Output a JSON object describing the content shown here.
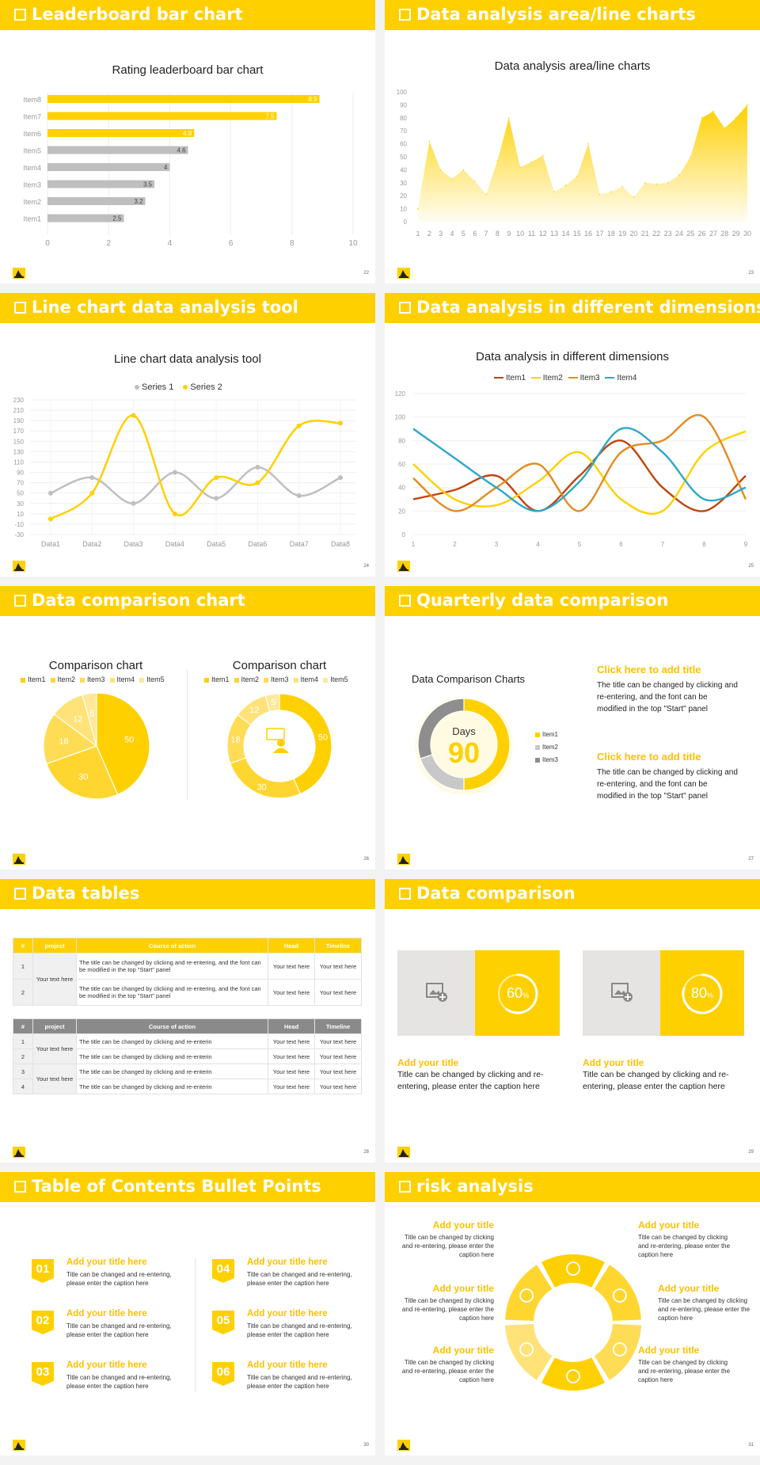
{
  "colors": {
    "accent": "#ffd000",
    "gray": "#bfbfbf",
    "dark_gray": "#8a8a8a",
    "orange": "#e58a1f",
    "blue": "#2ea7c9",
    "brown": "#c0440c"
  },
  "slides": [
    {
      "title": "Leaderboard bar chart",
      "page": "22"
    },
    {
      "title": "Data analysis area/line charts",
      "page": "23"
    },
    {
      "title": "Line chart data analysis tool",
      "page": "24"
    },
    {
      "title": "Data analysis in different dimensions",
      "page": "25"
    },
    {
      "title": "Data comparison chart",
      "page": "26"
    },
    {
      "title": "Quarterly data comparison",
      "page": "27"
    },
    {
      "title": "Data tables",
      "page": "28"
    },
    {
      "title": "Data comparison",
      "page": "29"
    },
    {
      "title": "Table of Contents Bullet Points",
      "page": "30"
    },
    {
      "title": "risk analysis",
      "page": "31"
    }
  ],
  "chart_data": [
    {
      "type": "bar",
      "orientation": "horizontal",
      "title": "Rating leaderboard bar chart",
      "categories": [
        "Item8",
        "Item7",
        "Item6",
        "Item5",
        "Item4",
        "Item3",
        "Item2",
        "Item1"
      ],
      "values": [
        8.9,
        7.5,
        4.8,
        4.6,
        4,
        3.5,
        3.2,
        2.5
      ],
      "highlight": [
        "Item8",
        "Item7",
        "Item6"
      ],
      "xlim": [
        0,
        10
      ],
      "xticks": [
        "0",
        "2",
        "4",
        "6",
        "8",
        "10"
      ]
    },
    {
      "type": "area",
      "title": "Data analysis area/line charts",
      "x": [
        1,
        2,
        3,
        4,
        5,
        6,
        7,
        8,
        9,
        10,
        11,
        12,
        13,
        14,
        15,
        16,
        17,
        18,
        19,
        20,
        21,
        22,
        23,
        24,
        25,
        26,
        27,
        28,
        29,
        30
      ],
      "values": [
        10,
        62,
        40,
        33,
        40,
        31,
        21,
        47,
        80,
        42,
        46,
        51,
        23,
        28,
        35,
        60,
        21,
        23,
        27,
        19,
        30,
        29,
        30,
        36,
        50,
        80,
        85,
        72,
        80,
        90
      ],
      "ylim": [
        0,
        100
      ],
      "yticks": [
        "0",
        "10",
        "20",
        "30",
        "40",
        "50",
        "60",
        "70",
        "80",
        "90",
        "100"
      ]
    },
    {
      "type": "line",
      "title": "Line chart data analysis tool",
      "categories": [
        "Data1",
        "Data2",
        "Data3",
        "Data4",
        "Data5",
        "Data6",
        "Data7",
        "Data8"
      ],
      "series": [
        {
          "name": "Series 1",
          "values": [
            50,
            80,
            30,
            90,
            40,
            100,
            45,
            80
          ]
        },
        {
          "name": "Series 2",
          "values": [
            0,
            50,
            200,
            10,
            80,
            70,
            180,
            185
          ]
        }
      ],
      "ylim": [
        -30,
        230
      ],
      "yticks": [
        "230",
        "210",
        "190",
        "170",
        "150",
        "130",
        "110",
        "90",
        "70",
        "50",
        "30",
        "10",
        "-10",
        "-30"
      ]
    },
    {
      "type": "line",
      "title": "Data analysis in different dimensions",
      "x": [
        1,
        2,
        3,
        4,
        5,
        6,
        7,
        8,
        9
      ],
      "series": [
        {
          "name": "Item1",
          "values": [
            30,
            38,
            50,
            20,
            50,
            80,
            40,
            20,
            50
          ]
        },
        {
          "name": "Item2",
          "values": [
            60,
            30,
            25,
            45,
            70,
            30,
            20,
            70,
            88
          ]
        },
        {
          "name": "Item3",
          "values": [
            48,
            20,
            40,
            60,
            20,
            70,
            80,
            100,
            30
          ]
        },
        {
          "name": "Item4",
          "values": [
            90,
            65,
            40,
            20,
            45,
            90,
            70,
            30,
            40
          ]
        }
      ],
      "ylim": [
        0,
        120
      ],
      "yticks": [
        "0",
        "20",
        "40",
        "60",
        "80",
        "100",
        "120"
      ]
    },
    {
      "type": "pie",
      "title": "Comparison chart",
      "labels": [
        "Item1",
        "Item2",
        "Item3",
        "Item4",
        "Item5"
      ],
      "values": [
        50,
        30,
        18,
        12,
        5
      ]
    },
    {
      "type": "pie",
      "variant": "donut",
      "title": "Comparison chart",
      "labels": [
        "Item1",
        "Item2",
        "Item3",
        "Item4",
        "Item5"
      ],
      "values": [
        50,
        30,
        18,
        12,
        5
      ]
    },
    {
      "type": "pie",
      "variant": "donut",
      "title": "Data Comparison Charts",
      "labels": [
        "Item1",
        "Item2",
        "Item3"
      ],
      "values": [
        50,
        20,
        30
      ],
      "center": {
        "label": "Days",
        "value": "90"
      }
    }
  ],
  "slide6": {
    "blocks": [
      {
        "title": "Click here to add title",
        "text": "The title can be changed by clicking and re-entering, and the font can be modified in the top \"Start\" panel"
      },
      {
        "title": "Click here to add title",
        "text": "The title can be changed by clicking and re-entering, and the font can be modified in the top \"Start\" panel"
      }
    ]
  },
  "slide7": {
    "headers": [
      "#",
      "project",
      "Course of action",
      "Head",
      "Timeline"
    ],
    "table1": {
      "group": "Your text here",
      "rows": [
        {
          "n": "1",
          "action": "The title can be changed by clicking and re-entering, and the font can be modified in the top \"Start\" panel",
          "head": "Your text here",
          "time": "Your text here"
        },
        {
          "n": "2",
          "action": "The title can be changed by clicking and re-entering, and the font can be modified in the top \"Start\" panel",
          "head": "Your text here",
          "time": "Your text here"
        }
      ]
    },
    "table2": {
      "group_a": "Your text here",
      "group_b": "Your text here",
      "rows": [
        {
          "n": "1",
          "action": "The title can be changed by clicking and re-enterin",
          "head": "Your text here",
          "time": "Your text here"
        },
        {
          "n": "2",
          "action": "The title can be changed by clicking and re-enterin",
          "head": "Your text here",
          "time": "Your text here"
        },
        {
          "n": "3",
          "action": "The title can be changed by clicking and re-enterin",
          "head": "Your text here",
          "time": "Your text here"
        },
        {
          "n": "4",
          "action": "The title can be changed by clicking and re-enterin",
          "head": "Your text here",
          "time": "Your text here"
        }
      ]
    }
  },
  "slide8": {
    "cards": [
      {
        "percent": 60,
        "label": "60",
        "unit": "%",
        "title": "Add your title",
        "text": "Title can be changed by clicking and re-entering, please enter the caption here"
      },
      {
        "percent": 80,
        "label": "80",
        "unit": "%",
        "title": "Add your title",
        "text": "Title can be changed by clicking and re-entering, please enter the caption here"
      }
    ]
  },
  "slide9": {
    "items": [
      {
        "num": "01",
        "title": "Add your title here",
        "text": "Title can be changed and re-entering, please enter the caption here"
      },
      {
        "num": "02",
        "title": "Add your title here",
        "text": "Title can be changed and re-entering, please enter the caption here"
      },
      {
        "num": "03",
        "title": "Add your title here",
        "text": "Title can be changed and re-entering, please enter the caption here"
      },
      {
        "num": "04",
        "title": "Add your title here",
        "text": "Title can be changed and re-entering, please enter the caption here"
      },
      {
        "num": "05",
        "title": "Add your title here",
        "text": "Title can be changed and re-entering, please enter the caption here"
      },
      {
        "num": "06",
        "title": "Add your title here",
        "text": "Title can be changed and re-entering, please enter the caption here"
      }
    ]
  },
  "slide10": {
    "items": [
      {
        "title": "Add your title",
        "text": "Title can be changed by clicking and re-entering, please enter the caption here"
      },
      {
        "title": "Add your title",
        "text": "Title can be changed by clicking and re-entering, please enter the caption here"
      },
      {
        "title": "Add your title",
        "text": "Title can be changed by clicking and re-entering, please enter the caption here"
      },
      {
        "title": "Add your title",
        "text": "Title can be changed by clicking and re-entering, please enter the caption here"
      },
      {
        "title": "Add your title",
        "text": "Title can be changed by clicking and re-entering, please enter the caption here"
      },
      {
        "title": "Add your title",
        "text": "Title can be changed by clicking and re-entering, please enter the caption here"
      }
    ],
    "icons": [
      "money-bag-icon",
      "coins-icon",
      "people-icon",
      "pie-chart-icon",
      "building-icon",
      "yen-icon"
    ]
  }
}
